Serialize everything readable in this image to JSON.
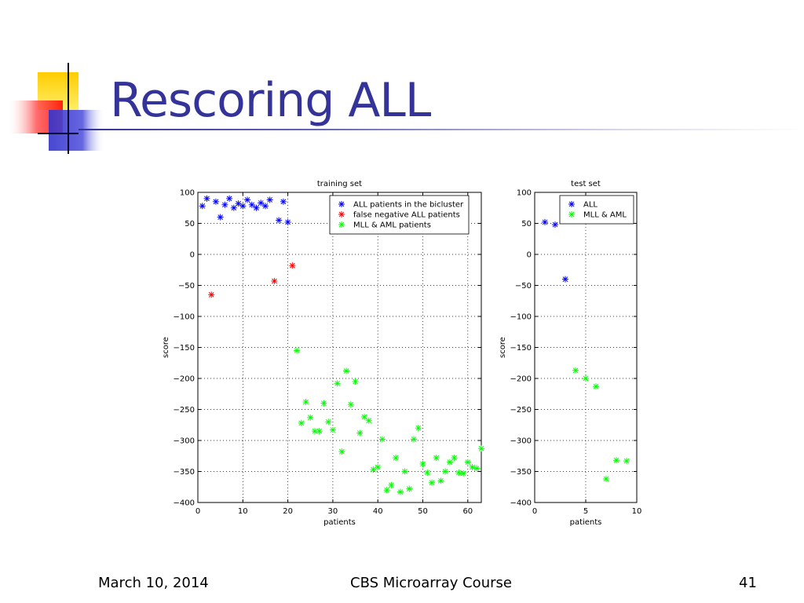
{
  "slide": {
    "title": "Rescoring ALL",
    "footer_left": "March 10, 2014",
    "footer_center": "CBS Microarray Course",
    "footer_right": "41"
  },
  "colors": {
    "title": "#333399",
    "all": "#0000ff",
    "false_negative": "#ff0000",
    "mll_aml": "#00ff00"
  },
  "chart_data": [
    {
      "type": "scatter",
      "title": "training set",
      "xlabel": "patients",
      "ylabel": "score",
      "xlim": [
        0,
        63
      ],
      "ylim": [
        -400,
        100
      ],
      "xticks": [
        0,
        10,
        20,
        30,
        40,
        50,
        60
      ],
      "yticks": [
        100,
        50,
        0,
        -50,
        -100,
        -150,
        -200,
        -250,
        -300,
        -350,
        -400
      ],
      "grid": true,
      "legend_position": "top-right",
      "marker": "*",
      "series": [
        {
          "name": "ALL patients in the bicluster",
          "color": "#0000ff",
          "x": [
            1,
            2,
            4,
            5,
            6,
            7,
            8,
            9,
            10,
            11,
            12,
            13,
            14,
            15,
            16,
            18,
            19,
            20
          ],
          "y": [
            78,
            90,
            85,
            60,
            80,
            90,
            75,
            82,
            78,
            88,
            80,
            75,
            83,
            78,
            88,
            55,
            85,
            52
          ]
        },
        {
          "name": "false negative ALL patients",
          "color": "#ff0000",
          "x": [
            3,
            17,
            21
          ],
          "y": [
            -65,
            -43,
            -18
          ]
        },
        {
          "name": "MLL & AML patients",
          "color": "#00ff00",
          "x": [
            22,
            23,
            24,
            25,
            26,
            27,
            28,
            29,
            30,
            31,
            32,
            33,
            34,
            35,
            36,
            37,
            38,
            39,
            40,
            41,
            42,
            43,
            44,
            45,
            46,
            47,
            48,
            49,
            50,
            51,
            52,
            53,
            54,
            55,
            56,
            57,
            58,
            59,
            60,
            61,
            62,
            63
          ],
          "y": [
            -155,
            -272,
            -238,
            -263,
            -285,
            -285,
            -240,
            -270,
            -283,
            -208,
            -318,
            -188,
            -242,
            -205,
            -288,
            -262,
            -268,
            -347,
            -343,
            -298,
            -380,
            -372,
            -328,
            -383,
            -350,
            -378,
            -298,
            -280,
            -338,
            -352,
            -368,
            -328,
            -365,
            -350,
            -335,
            -328,
            -352,
            -353,
            -335,
            -343,
            -345,
            -313
          ]
        }
      ]
    },
    {
      "type": "scatter",
      "title": "test set",
      "xlabel": "patients",
      "ylabel": "score",
      "xlim": [
        0,
        10
      ],
      "ylim": [
        -400,
        100
      ],
      "xticks": [
        0,
        5,
        10
      ],
      "yticks": [
        100,
        50,
        0,
        -50,
        -100,
        -150,
        -200,
        -250,
        -300,
        -350,
        -400
      ],
      "grid": true,
      "legend_position": "top-right",
      "marker": "*",
      "series": [
        {
          "name": "ALL",
          "color": "#0000ff",
          "x": [
            1,
            2,
            3
          ],
          "y": [
            52,
            48,
            -40
          ]
        },
        {
          "name": "MLL & AML",
          "color": "#00ff00",
          "x": [
            4,
            5,
            6,
            7,
            8,
            9
          ],
          "y": [
            -187,
            -200,
            -213,
            -362,
            -332,
            -333
          ]
        }
      ]
    }
  ]
}
